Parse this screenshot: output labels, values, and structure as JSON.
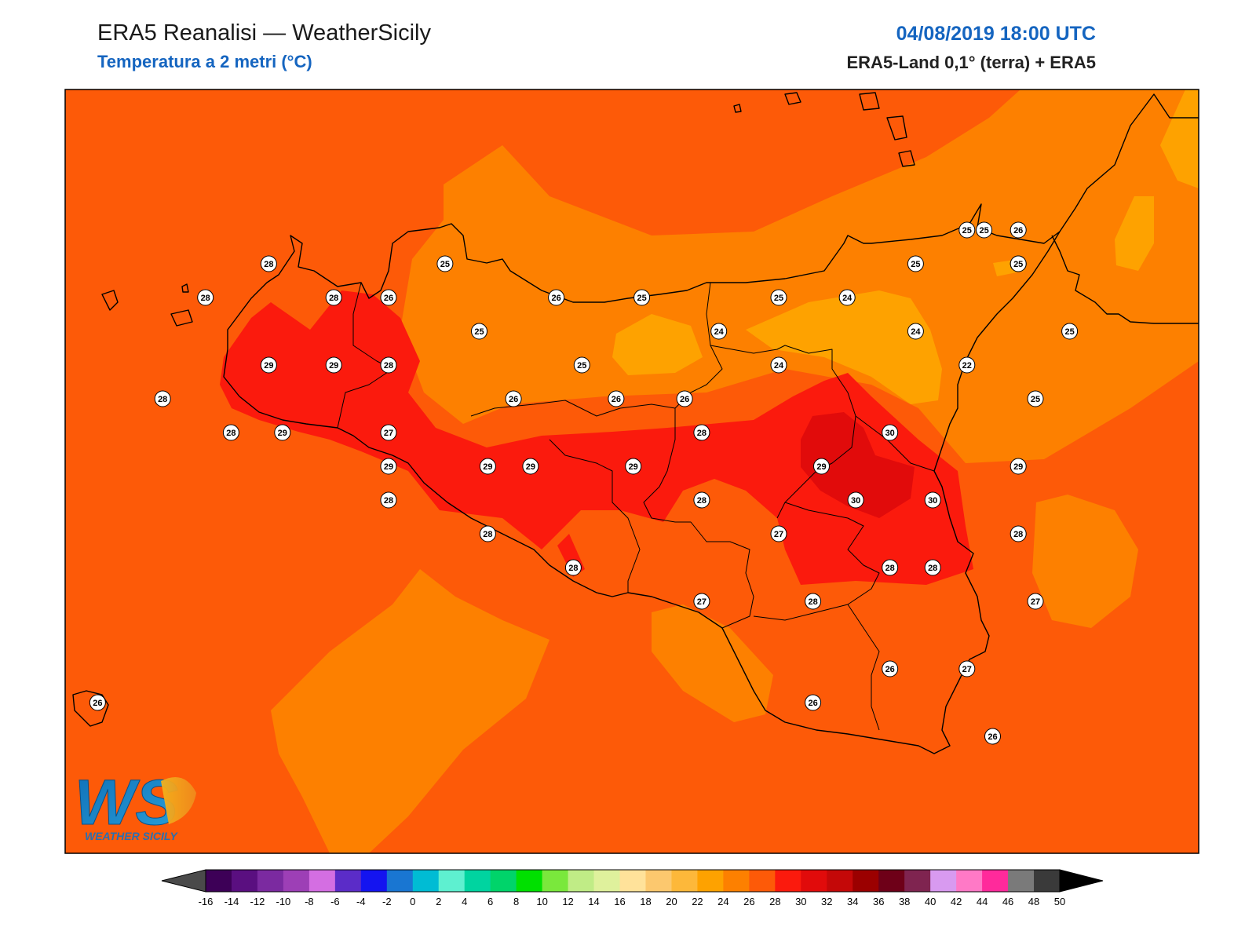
{
  "header": {
    "title": "ERA5 Reanalisi — WeatherSicily",
    "subtitle": "Temperatura a 2 metri (°C)",
    "datetime": "04/08/2019 18:00 UTC",
    "source": "ERA5-Land 0,1° (terra) + ERA5"
  },
  "logo": {
    "letters": "WS",
    "wordmark": "WEATHER SICILY"
  },
  "colors": {
    "sea_background": "#fd5a08",
    "band_26_28": "#fd5a08",
    "band_24_26": "#fd8000",
    "band_22_24": "#fea200",
    "band_28_30": "#fb1a0d",
    "band_30_32": "#e10b0b",
    "coastline": "#000000"
  },
  "stations": [
    {
      "lon": 12.92,
      "lat": 38.13,
      "t": "28"
    },
    {
      "lon": 12.55,
      "lat": 38.03,
      "t": "28"
    },
    {
      "lon": 13.3,
      "lat": 38.03,
      "t": "28"
    },
    {
      "lon": 13.62,
      "lat": 38.03,
      "t": "26"
    },
    {
      "lon": 13.95,
      "lat": 38.13,
      "t": "25"
    },
    {
      "lon": 14.6,
      "lat": 38.03,
      "t": "26"
    },
    {
      "lon": 15.1,
      "lat": 38.03,
      "t": "25"
    },
    {
      "lon": 13.3,
      "lat": 37.83,
      "t": "29"
    },
    {
      "lon": 12.92,
      "lat": 37.83,
      "t": "29"
    },
    {
      "lon": 13.62,
      "lat": 37.83,
      "t": "28"
    },
    {
      "lon": 14.15,
      "lat": 37.93,
      "t": "25"
    },
    {
      "lon": 14.75,
      "lat": 37.83,
      "t": "25"
    },
    {
      "lon": 12.3,
      "lat": 37.73,
      "t": "28"
    },
    {
      "lon": 14.35,
      "lat": 37.73,
      "t": "26"
    },
    {
      "lon": 14.95,
      "lat": 37.73,
      "t": "26"
    },
    {
      "lon": 15.35,
      "lat": 37.73,
      "t": "26"
    },
    {
      "lon": 15.55,
      "lat": 37.93,
      "t": "24"
    },
    {
      "lon": 15.9,
      "lat": 38.03,
      "t": "25"
    },
    {
      "lon": 16.3,
      "lat": 38.03,
      "t": "24"
    },
    {
      "lon": 15.9,
      "lat": 37.83,
      "t": "24"
    },
    {
      "lon": 16.7,
      "lat": 38.13,
      "t": "25"
    },
    {
      "lon": 17.3,
      "lat": 38.13,
      "t": "25"
    },
    {
      "lon": 16.7,
      "lat": 37.93,
      "t": "24"
    },
    {
      "lon": 17.0,
      "lat": 37.83,
      "t": "22"
    },
    {
      "lon": 17.6,
      "lat": 37.93,
      "t": "25"
    },
    {
      "lon": 17.1,
      "lat": 38.23,
      "t": "25"
    },
    {
      "lon": 17.3,
      "lat": 38.23,
      "t": "26"
    },
    {
      "lon": 17.3,
      "lat": 38.13,
      "t": "25"
    },
    {
      "lon": 17.0,
      "lat": 38.23,
      "t": "25"
    },
    {
      "lon": 17.4,
      "lat": 37.73,
      "t": "25"
    },
    {
      "lon": 12.7,
      "lat": 37.63,
      "t": "28"
    },
    {
      "lon": 13.0,
      "lat": 37.63,
      "t": "29"
    },
    {
      "lon": 13.62,
      "lat": 37.63,
      "t": "27"
    },
    {
      "lon": 13.62,
      "lat": 37.53,
      "t": "29"
    },
    {
      "lon": 14.2,
      "lat": 37.53,
      "t": "29"
    },
    {
      "lon": 14.45,
      "lat": 37.53,
      "t": "29"
    },
    {
      "lon": 15.05,
      "lat": 37.53,
      "t": "29"
    },
    {
      "lon": 15.45,
      "lat": 37.63,
      "t": "28"
    },
    {
      "lon": 16.15,
      "lat": 37.53,
      "t": "29"
    },
    {
      "lon": 16.55,
      "lat": 37.63,
      "t": "30"
    },
    {
      "lon": 16.35,
      "lat": 37.43,
      "t": "30"
    },
    {
      "lon": 16.8,
      "lat": 37.43,
      "t": "30"
    },
    {
      "lon": 17.3,
      "lat": 37.53,
      "t": "29"
    },
    {
      "lon": 13.62,
      "lat": 37.43,
      "t": "28"
    },
    {
      "lon": 14.2,
      "lat": 37.33,
      "t": "28"
    },
    {
      "lon": 15.45,
      "lat": 37.43,
      "t": "28"
    },
    {
      "lon": 15.9,
      "lat": 37.33,
      "t": "27"
    },
    {
      "lon": 14.7,
      "lat": 37.23,
      "t": "28"
    },
    {
      "lon": 16.55,
      "lat": 37.23,
      "t": "28"
    },
    {
      "lon": 16.8,
      "lat": 37.23,
      "t": "28"
    },
    {
      "lon": 17.3,
      "lat": 37.33,
      "t": "28"
    },
    {
      "lon": 15.45,
      "lat": 37.13,
      "t": "27"
    },
    {
      "lon": 16.1,
      "lat": 37.13,
      "t": "28"
    },
    {
      "lon": 17.4,
      "lat": 37.13,
      "t": "27"
    },
    {
      "lon": 16.55,
      "lat": 36.93,
      "t": "26"
    },
    {
      "lon": 17.0,
      "lat": 36.93,
      "t": "27"
    },
    {
      "lon": 16.1,
      "lat": 36.83,
      "t": "26"
    },
    {
      "lon": 17.15,
      "lat": 36.73,
      "t": "26"
    },
    {
      "lon": 11.92,
      "lat": 36.83,
      "t": "26"
    }
  ],
  "colorbar": {
    "ticks": [
      "-16",
      "-14",
      "-12",
      "-10",
      "-8",
      "-6",
      "-4",
      "-2",
      "0",
      "2",
      "4",
      "6",
      "8",
      "10",
      "12",
      "14",
      "16",
      "18",
      "20",
      "22",
      "24",
      "26",
      "28",
      "30",
      "32",
      "34",
      "36",
      "38",
      "40",
      "42",
      "44",
      "46",
      "48",
      "50"
    ],
    "colors": [
      "#3d0057",
      "#5a0f80",
      "#7b2aa0",
      "#9d3fb6",
      "#d46ee2",
      "#5b2cc8",
      "#1414f0",
      "#1976d2",
      "#00bcd4",
      "#5ef0d0",
      "#00d4a0",
      "#00d46a",
      "#00e000",
      "#7ae83c",
      "#c0ec86",
      "#dff19c",
      "#ffe29a",
      "#fcc86e",
      "#fdb83a",
      "#fea200",
      "#fd8000",
      "#fd5a08",
      "#fb1a0d",
      "#e10b0b",
      "#c40808",
      "#9b0000",
      "#6e0018",
      "#7f2450",
      "#d89af0",
      "#ff79c6",
      "#ff2a9b",
      "#7a7a7a",
      "#3a3a3a"
    ]
  }
}
